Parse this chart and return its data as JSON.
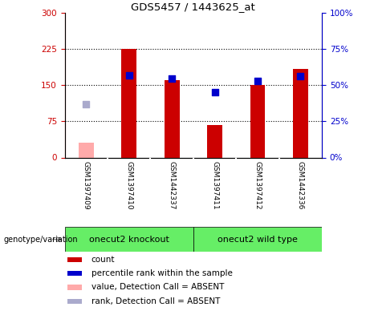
{
  "title": "GDS5457 / 1443625_at",
  "samples": [
    "GSM1397409",
    "GSM1397410",
    "GSM1442337",
    "GSM1397411",
    "GSM1397412",
    "GSM1442336"
  ],
  "bar_values": [
    null,
    225,
    160,
    68,
    150,
    183
  ],
  "bar_colors": [
    "#cc0000",
    "#cc0000",
    "#cc0000",
    "#cc0000",
    "#cc0000",
    "#cc0000"
  ],
  "absent_bar_value": 30,
  "absent_bar_color": "#ffaaaa",
  "blue_dot_values": [
    null,
    170,
    163,
    135,
    158,
    168
  ],
  "absent_dot_value": 110,
  "absent_dot_color": "#aaaacc",
  "blue_dot_color": "#0000cc",
  "ylim_left": [
    0,
    300
  ],
  "ylim_right": [
    0,
    100
  ],
  "yticks_left": [
    0,
    75,
    150,
    225,
    300
  ],
  "yticks_right": [
    0,
    25,
    50,
    75,
    100
  ],
  "ytick_labels_left": [
    "0",
    "75",
    "150",
    "225",
    "300"
  ],
  "ytick_labels_right": [
    "0%",
    "25%",
    "50%",
    "75%",
    "100%"
  ],
  "hlines": [
    75,
    150,
    225
  ],
  "groups": [
    {
      "label": "onecut2 knockout",
      "color": "#66ee66"
    },
    {
      "label": "onecut2 wild type",
      "color": "#66ee66"
    }
  ],
  "group_label": "genotype/variation",
  "legend_items": [
    {
      "label": "count",
      "color": "#cc0000"
    },
    {
      "label": "percentile rank within the sample",
      "color": "#0000cc"
    },
    {
      "label": "value, Detection Call = ABSENT",
      "color": "#ffaaaa"
    },
    {
      "label": "rank, Detection Call = ABSENT",
      "color": "#aaaacc"
    }
  ],
  "bar_width": 0.35,
  "dot_size": 35,
  "left_tick_color": "#cc0000",
  "right_tick_color": "#0000cc",
  "sample_bg_color": "#cccccc",
  "sample_divider_color": "#ffffff"
}
